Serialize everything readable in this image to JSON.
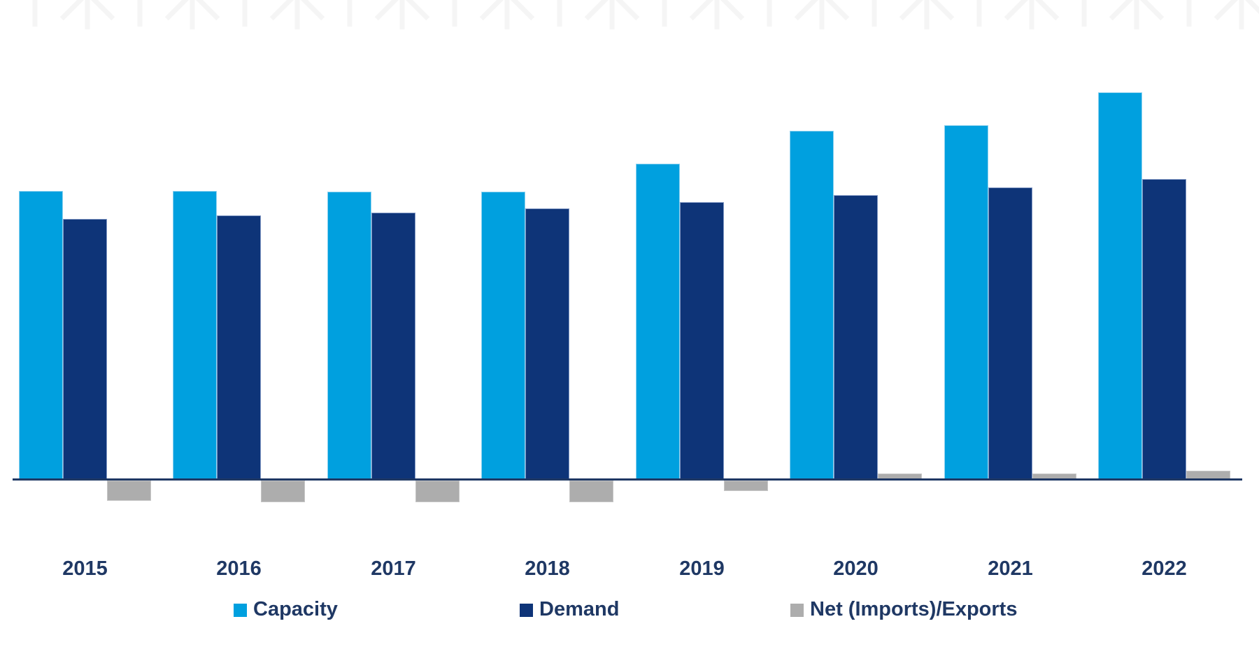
{
  "page": {
    "background": "#FFFFFF",
    "title": ""
  },
  "colors": {
    "capacity": "#00A0DF",
    "demand": "#0E3478",
    "net": "#ADADAD",
    "axis": "#1F3864",
    "text": "#1F3864",
    "watermark": "#F5F5F5"
  },
  "decor": {
    "background_pattern": "faint-asterisk-and-bar-watermark-strip"
  },
  "chart_data": {
    "type": "bar",
    "title": "",
    "xlabel": "",
    "ylabel": "",
    "value_axis_visible": false,
    "units": "relative bar heights in pixels above/below baseline (no value axis or data labels shown in image)",
    "grid": false,
    "legend_position": "bottom",
    "categories": [
      "2015",
      "2016",
      "2017",
      "2018",
      "2019",
      "2020",
      "2021",
      "2022"
    ],
    "series": [
      {
        "name": "Capacity",
        "color": "#00A0DF",
        "values": [
          414,
          414,
          413,
          413,
          453,
          500,
          508,
          555
        ]
      },
      {
        "name": "Demand",
        "color": "#0E3478",
        "values": [
          374,
          379,
          383,
          389,
          398,
          408,
          419,
          431
        ]
      },
      {
        "name": "Net (Imports)/Exports",
        "color": "#ADADAD",
        "values": [
          -29,
          -31,
          -31,
          -31,
          -15,
          10,
          10,
          14
        ]
      }
    ]
  }
}
